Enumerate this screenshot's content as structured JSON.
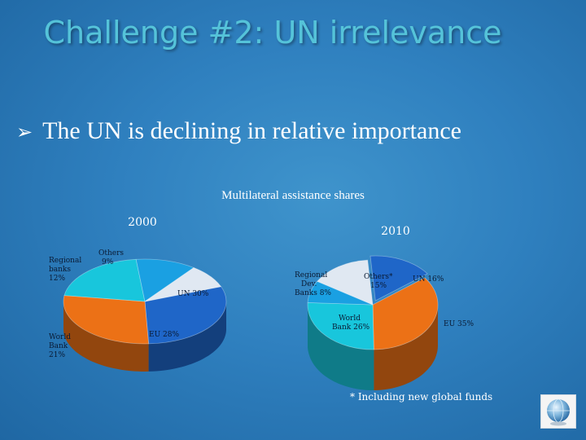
{
  "slide": {
    "title": "Challenge #2: UN irrelevance",
    "bullet": "The UN is declining in relative importance",
    "bullet_marker": "➢",
    "footnote": "* Including new global funds",
    "logo_icon": "globe-icon"
  },
  "chart_data": [
    {
      "type": "pie",
      "title": "Multilateral assistance shares",
      "subtitle": "2000",
      "categories": [
        "UN",
        "EU",
        "World Bank",
        "Regional banks",
        "Others"
      ],
      "values": [
        30,
        28,
        21,
        12,
        9
      ],
      "labels": [
        "UN 30%",
        "EU 28%",
        "World Bank 21%",
        "Regional banks 12%",
        "Others 9%"
      ],
      "colors": [
        "#1f66c8",
        "#ec7116",
        "#18c6dc",
        "#1aa0e2",
        "#e0e8f2"
      ],
      "legend": "none"
    },
    {
      "type": "pie",
      "title": "Multilateral assistance shares",
      "subtitle": "2010",
      "categories": [
        "UN",
        "EU",
        "World Bank",
        "Regional Dev. Banks",
        "Others*"
      ],
      "values": [
        16,
        35,
        26,
        8,
        15
      ],
      "labels": [
        "UN 16%",
        "EU 35%",
        "World Bank 26%",
        "Regional Dev. Banks 8%",
        "Others* 15%"
      ],
      "colors": [
        "#1f66c8",
        "#ec7116",
        "#18c6dc",
        "#1aa0e2",
        "#e0e8f2"
      ],
      "legend": "none"
    }
  ]
}
